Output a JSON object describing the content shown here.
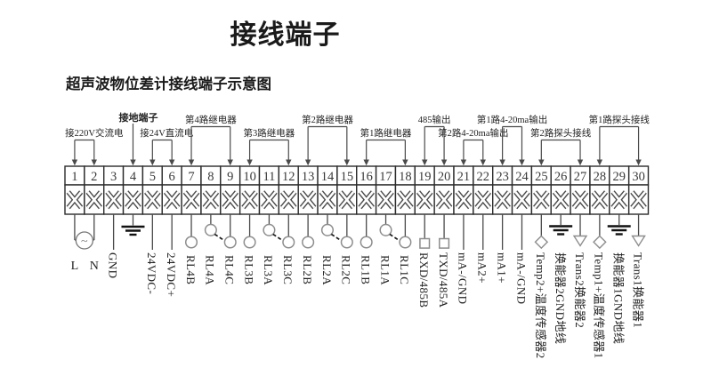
{
  "page": {
    "title": "接线端子",
    "subtitle": "超声波物位差计接线端子示意图"
  },
  "diagram": {
    "terminal_count": 30,
    "top_groups": [
      {
        "label": "接220V交流电",
        "from": 1,
        "to": 2,
        "row": "low",
        "type": "bracket",
        "bold": false
      },
      {
        "label": "接地端子",
        "from": 4,
        "to": 4,
        "row": "high",
        "type": "line",
        "bold": true
      },
      {
        "label": "接24V直流电",
        "from": 5,
        "to": 6,
        "row": "low",
        "type": "bracket",
        "bold": false
      },
      {
        "label": "第4路继电器",
        "from": 7,
        "to": 9,
        "row": "high",
        "type": "bracket",
        "bold": false
      },
      {
        "label": "第3路继电器",
        "from": 10,
        "to": 12,
        "row": "low",
        "type": "bracket",
        "bold": false
      },
      {
        "label": "第2路继电器",
        "from": 13,
        "to": 15,
        "row": "high",
        "type": "bracket",
        "bold": false
      },
      {
        "label": "第1路继电器",
        "from": 16,
        "to": 18,
        "row": "low",
        "type": "bracket",
        "bold": false
      },
      {
        "label": "485输出",
        "from": 19,
        "to": 20,
        "row": "high",
        "type": "bracket",
        "bold": false
      },
      {
        "label": "第2路4-20ma输出",
        "from": 21,
        "to": 22,
        "row": "low",
        "type": "bracket",
        "bold": false
      },
      {
        "label": "第1路4-20ma输出",
        "from": 23,
        "to": 24,
        "row": "high",
        "type": "bracket",
        "bold": false
      },
      {
        "label": "第2路探头接线",
        "from": 25,
        "to": 27,
        "row": "low",
        "type": "bracket",
        "bold": false
      },
      {
        "label": "第1路探头接线",
        "from": 28,
        "to": 30,
        "row": "high",
        "type": "bracket",
        "bold": false
      }
    ],
    "ac_source_symbol": "~",
    "terminals": [
      {
        "n": 1,
        "symbol": "ac-line",
        "label": "L",
        "orientation": "horizontal"
      },
      {
        "n": 2,
        "symbol": "ac-line",
        "label": "N",
        "orientation": "horizontal"
      },
      {
        "n": 3,
        "symbol": "line",
        "label": "GND"
      },
      {
        "n": 4,
        "symbol": "ground",
        "label": ""
      },
      {
        "n": 5,
        "symbol": "line",
        "label": "24VDC-"
      },
      {
        "n": 6,
        "symbol": "line",
        "label": "24VDC+"
      },
      {
        "n": 7,
        "symbol": "contact",
        "label": "RL4B"
      },
      {
        "n": 8,
        "symbol": "contact-arm",
        "label": "RL4A"
      },
      {
        "n": 9,
        "symbol": "contact",
        "label": "RL4C"
      },
      {
        "n": 10,
        "symbol": "contact",
        "label": "RL3B"
      },
      {
        "n": 11,
        "symbol": "contact-arm",
        "label": "RL3A"
      },
      {
        "n": 12,
        "symbol": "contact",
        "label": "RL3C"
      },
      {
        "n": 13,
        "symbol": "contact",
        "label": "RL2B"
      },
      {
        "n": 14,
        "symbol": "contact-arm",
        "label": "RL2A"
      },
      {
        "n": 15,
        "symbol": "contact",
        "label": "RL2C"
      },
      {
        "n": 16,
        "symbol": "contact",
        "label": "RL1B"
      },
      {
        "n": 17,
        "symbol": "contact-arm",
        "label": "RL1A"
      },
      {
        "n": 18,
        "symbol": "contact",
        "label": "RL1C"
      },
      {
        "n": 19,
        "symbol": "square",
        "label": "RXD/485B"
      },
      {
        "n": 20,
        "symbol": "square",
        "label": "TXD/485A"
      },
      {
        "n": 21,
        "symbol": "line",
        "label": "mA-/GND"
      },
      {
        "n": 22,
        "symbol": "line",
        "label": "mA2+"
      },
      {
        "n": 23,
        "symbol": "line",
        "label": "mA1+"
      },
      {
        "n": 24,
        "symbol": "line",
        "label": "mA-/GND"
      },
      {
        "n": 25,
        "symbol": "diamond",
        "label": "Temp2+温度传感器2"
      },
      {
        "n": 26,
        "symbol": "ground-short",
        "label": "换能器2GND地线"
      },
      {
        "n": 27,
        "symbol": "triangle",
        "label": "Trans2换能器2"
      },
      {
        "n": 28,
        "symbol": "diamond",
        "label": "Temp1+温度传感器1"
      },
      {
        "n": 29,
        "symbol": "ground-short",
        "label": "换能器1GND地线"
      },
      {
        "n": 30,
        "symbol": "triangle",
        "label": "Trans1换能器1"
      }
    ],
    "colors": {
      "line": "#4a4a4a",
      "symbol_stroke": "#8d8d8d",
      "ground": "#111111",
      "text": "#222222",
      "border": "#2b2b2b"
    }
  }
}
